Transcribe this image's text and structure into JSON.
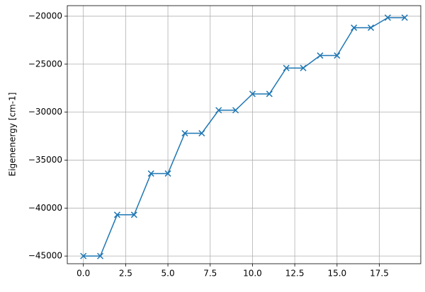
{
  "chart_data": {
    "type": "line",
    "y_label": "Eigenenergy [cm-1]",
    "x": [
      0,
      1,
      2,
      3,
      4,
      5,
      6,
      7,
      8,
      9,
      10,
      11,
      12,
      13,
      14,
      15,
      16,
      17,
      18,
      19
    ],
    "series": [
      {
        "color": "#1f77b4",
        "marker": "x",
        "values": [
          -45000,
          -45000,
          -40700,
          -40700,
          -36400,
          -36400,
          -32200,
          -32200,
          -29800,
          -29800,
          -28100,
          -28100,
          -25400,
          -25400,
          -24100,
          -24100,
          -21200,
          -21200,
          -20150,
          -20150
        ]
      }
    ],
    "xlim": [
      -0.95,
      19.95
    ],
    "xticks": [
      {
        "value": 0,
        "label": "0.0"
      },
      {
        "value": 2.5,
        "label": "2.5"
      },
      {
        "value": 5,
        "label": "5.0"
      },
      {
        "value": 7.5,
        "label": "7.5"
      },
      {
        "value": 10,
        "label": "10.0"
      },
      {
        "value": 12.5,
        "label": "12.5"
      },
      {
        "value": 15,
        "label": "15.0"
      },
      {
        "value": 17.5,
        "label": "17.5"
      }
    ],
    "ylim": [
      -45800,
      -18900
    ],
    "yticks": [
      {
        "value": -45000,
        "label": "−45000"
      },
      {
        "value": -40000,
        "label": "−40000"
      },
      {
        "value": -35000,
        "label": "−35000"
      },
      {
        "value": -30000,
        "label": "−30000"
      },
      {
        "value": -25000,
        "label": "−25000"
      },
      {
        "value": -20000,
        "label": "−20000"
      }
    ],
    "grid": true
  }
}
